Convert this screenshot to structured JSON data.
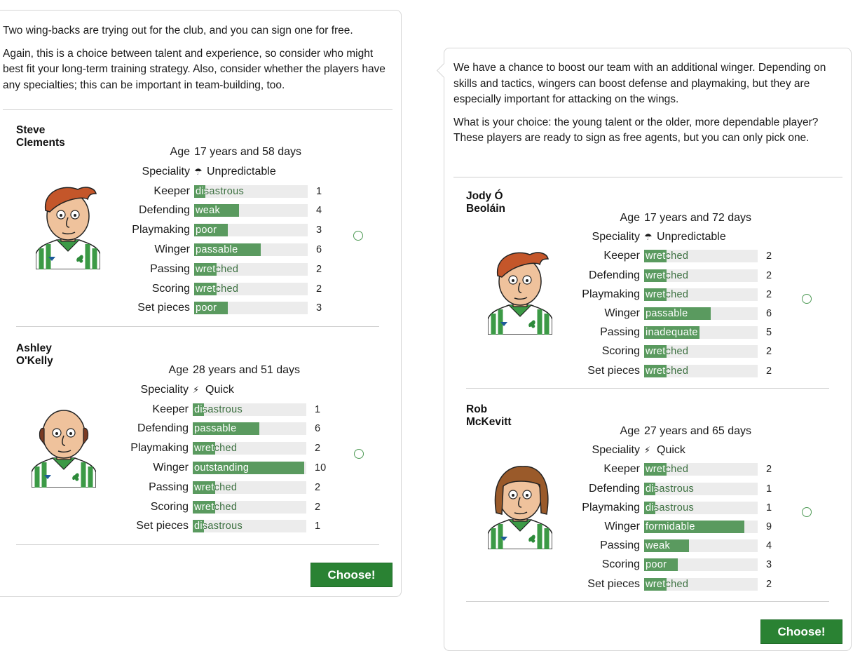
{
  "colors": {
    "bar_fill": "#5a9a5f",
    "bar_bg": "#ececec",
    "button": "#2a8233",
    "radio": "#4e9a55"
  },
  "left": {
    "intro": [
      "Two wing-backs are trying out for the club, and you can sign one for free.",
      "Again, this is a choice between talent and experience, so consider who might best fit your long-term training strategy. Also, consider whether the players have any specialties; this can be important in team-building, too."
    ],
    "players": [
      {
        "name": "Steve Clements",
        "age_label": "Age",
        "age": "17 years and 58 days",
        "speciality_label": "Speciality",
        "speciality": "Unpredictable",
        "speciality_icon": "umbrella-icon",
        "skills": [
          {
            "label": "Keeper",
            "level": "disastrous",
            "value": 1
          },
          {
            "label": "Defending",
            "level": "weak",
            "value": 4
          },
          {
            "label": "Playmaking",
            "level": "poor",
            "value": 3
          },
          {
            "label": "Winger",
            "level": "passable",
            "value": 6
          },
          {
            "label": "Passing",
            "level": "wretched",
            "value": 2
          },
          {
            "label": "Scoring",
            "level": "wretched",
            "value": 2
          },
          {
            "label": "Set pieces",
            "level": "poor",
            "value": 3
          }
        ]
      },
      {
        "name": "Ashley O'Kelly",
        "age_label": "Age",
        "age": "28 years and 51 days",
        "speciality_label": "Speciality",
        "speciality": "Quick",
        "speciality_icon": "running-icon",
        "skills": [
          {
            "label": "Keeper",
            "level": "disastrous",
            "value": 1
          },
          {
            "label": "Defending",
            "level": "passable",
            "value": 6
          },
          {
            "label": "Playmaking",
            "level": "wretched",
            "value": 2
          },
          {
            "label": "Winger",
            "level": "outstanding",
            "value": 10
          },
          {
            "label": "Passing",
            "level": "wretched",
            "value": 2
          },
          {
            "label": "Scoring",
            "level": "wretched",
            "value": 2
          },
          {
            "label": "Set pieces",
            "level": "disastrous",
            "value": 1
          }
        ]
      }
    ],
    "choose_label": "Choose!"
  },
  "right": {
    "intro": [
      "We have a chance to boost our team with an additional winger. Depending on skills and tactics, wingers can boost defense and playmaking, but they are especially important for attacking on the wings.",
      "What is your choice: the young talent or the older, more dependable player? These players are ready to sign as free agents, but you can only pick one."
    ],
    "players": [
      {
        "name": "Jody Ó Beoláin",
        "age_label": "Age",
        "age": "17 years and 72 days",
        "speciality_label": "Speciality",
        "speciality": "Unpredictable",
        "speciality_icon": "umbrella-icon",
        "skills": [
          {
            "label": "Keeper",
            "level": "wretched",
            "value": 2
          },
          {
            "label": "Defending",
            "level": "wretched",
            "value": 2
          },
          {
            "label": "Playmaking",
            "level": "wretched",
            "value": 2
          },
          {
            "label": "Winger",
            "level": "passable",
            "value": 6
          },
          {
            "label": "Passing",
            "level": "inadequate",
            "value": 5
          },
          {
            "label": "Scoring",
            "level": "wretched",
            "value": 2
          },
          {
            "label": "Set pieces",
            "level": "wretched",
            "value": 2
          }
        ]
      },
      {
        "name": "Rob McKevitt",
        "age_label": "Age",
        "age": "27 years and 65 days",
        "speciality_label": "Speciality",
        "speciality": "Quick",
        "speciality_icon": "running-icon",
        "skills": [
          {
            "label": "Keeper",
            "level": "wretched",
            "value": 2
          },
          {
            "label": "Defending",
            "level": "disastrous",
            "value": 1
          },
          {
            "label": "Playmaking",
            "level": "disastrous",
            "value": 1
          },
          {
            "label": "Winger",
            "level": "formidable",
            "value": 9
          },
          {
            "label": "Passing",
            "level": "weak",
            "value": 4
          },
          {
            "label": "Scoring",
            "level": "poor",
            "value": 3
          },
          {
            "label": "Set pieces",
            "level": "wretched",
            "value": 2
          }
        ]
      }
    ],
    "choose_label": "Choose!"
  }
}
